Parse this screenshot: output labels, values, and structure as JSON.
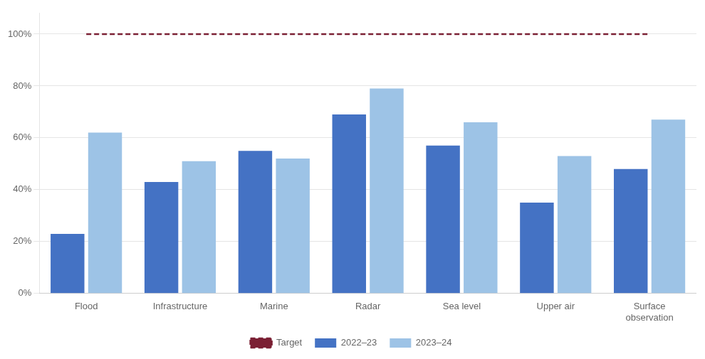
{
  "chart_data": {
    "type": "bar",
    "categories": [
      "Flood",
      "Infrastructure",
      "Marine",
      "Radar",
      "Sea level",
      "Upper air",
      "Surface\nobservation"
    ],
    "series": [
      {
        "name": "2022–23",
        "color": "#4472C4",
        "values": [
          0.23,
          0.43,
          0.55,
          0.69,
          0.57,
          0.35,
          0.48
        ]
      },
      {
        "name": "2023–24",
        "color": "#9DC3E6",
        "values": [
          0.62,
          0.51,
          0.52,
          0.79,
          0.66,
          0.53,
          0.67
        ]
      },
      {
        "name": "Target",
        "type": "line",
        "line_style": "dashed",
        "color": "#7B2034",
        "values": [
          1.0,
          1.0,
          1.0,
          1.0,
          1.0,
          1.0,
          1.0
        ]
      }
    ],
    "ylim": [
      0,
      1.08
    ],
    "yticks": [
      {
        "value": 0,
        "label": "0%"
      },
      {
        "value": 0.2,
        "label": "20%"
      },
      {
        "value": 0.4,
        "label": "40%"
      },
      {
        "value": 0.6,
        "label": "60%"
      },
      {
        "value": 0.8,
        "label": "80%"
      },
      {
        "value": 1.0,
        "label": "100%"
      }
    ],
    "grid": true,
    "legend": "bottom"
  }
}
